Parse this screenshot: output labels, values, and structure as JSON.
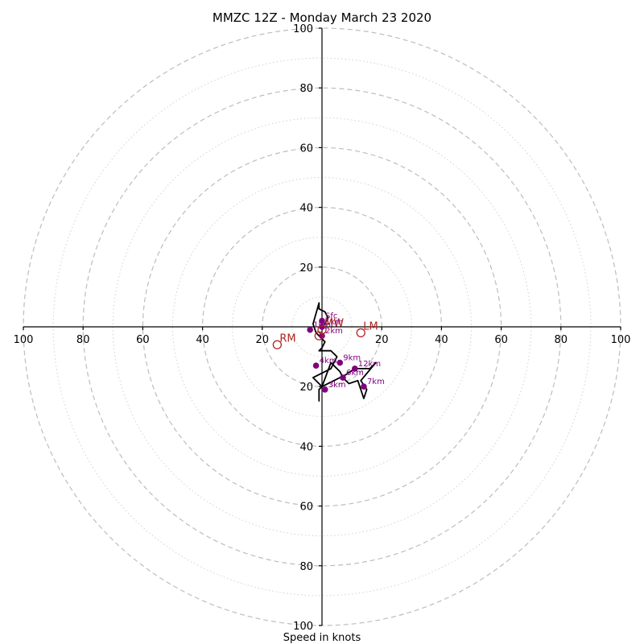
{
  "chart_data": {
    "type": "scatter",
    "title": "MMZC 12Z - Monday March 23 2020",
    "xlabel": "Speed in knots",
    "ylabel": "",
    "xlim": [
      -100,
      100
    ],
    "ylim": [
      -100,
      100
    ],
    "major_rings": [
      20,
      40,
      60,
      80,
      100
    ],
    "minor_rings": [
      10,
      30,
      50,
      70,
      90
    ],
    "x_tick_labels": [
      "100",
      "80",
      "60",
      "40",
      "20",
      "20",
      "40",
      "60",
      "80",
      "100"
    ],
    "y_tick_labels": [
      "100",
      "80",
      "60",
      "40",
      "20",
      "20",
      "40",
      "60",
      "80",
      "100"
    ],
    "hodograph_trace": {
      "x": [
        0,
        1,
        2,
        1,
        -1,
        -1,
        -3,
        -2,
        1,
        0,
        -1,
        3,
        4,
        5,
        3,
        -3,
        0,
        8,
        11,
        16,
        18,
        13,
        15,
        14,
        12,
        9,
        7,
        6,
        4,
        3,
        0,
        -1,
        -1
      ],
      "y": [
        0,
        1,
        3,
        5,
        6,
        8,
        1,
        -2,
        -5,
        -7,
        -8,
        -8,
        -9,
        -10,
        -14,
        -17,
        -20,
        -16,
        -14,
        -14,
        -12,
        -18,
        -21,
        -24,
        -18,
        -19,
        -17,
        -15,
        -13,
        -12,
        -20,
        -21,
        -25
      ]
    },
    "height_markers": [
      {
        "label": "Sfc",
        "x": 0,
        "y": 2
      },
      {
        "label": "1km",
        "x": 0,
        "y": 0
      },
      {
        "label": "1km",
        "x": -4,
        "y": -1
      },
      {
        "label": "2km",
        "x": 0,
        "y": -3
      },
      {
        "label": "3km",
        "x": 1,
        "y": -21
      },
      {
        "label": "4km",
        "x": -2,
        "y": -13
      },
      {
        "label": "6km",
        "x": 7,
        "y": -17
      },
      {
        "label": "7km",
        "x": 14,
        "y": -20
      },
      {
        "label": "9km",
        "x": 6,
        "y": -12
      },
      {
        "label": "12km",
        "x": 11,
        "y": -14
      }
    ],
    "motion_markers": [
      {
        "label": "RM",
        "x": -15,
        "y": -6
      },
      {
        "label": "LM",
        "x": 13,
        "y": -2
      },
      {
        "label": "MW",
        "x": 0,
        "y": -1
      },
      {
        "label": "",
        "x": -1,
        "y": -3
      }
    ],
    "colors": {
      "trace": "#000000",
      "height_marker": "#800080",
      "motion_marker": "#b22222",
      "major_ring": "#bdbdbd",
      "minor_ring": "#d2d2d2"
    }
  }
}
